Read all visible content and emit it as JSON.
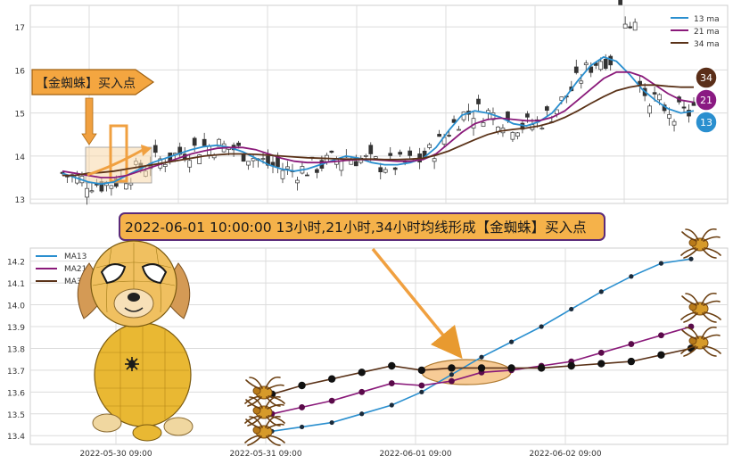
{
  "colors": {
    "ma13": "#2a8fcf",
    "ma21": "#8a1a7a",
    "ma34": "#5a3218",
    "grid": "#dcdcdc",
    "panel_bg": "#eaeaf2",
    "callout_fill": "#f4a640",
    "callout_stroke": "#a06010",
    "banner_fill": "#f5b24a",
    "banner_stroke": "#5a2a7a",
    "badge34": "#5a2e18",
    "badge21": "#8a1a82",
    "badge13": "#2a8fcf"
  },
  "callout_text": "【金蜘蛛】买入点",
  "banner_text": "2022-06-01 10:00:00 13小时,21小时,34小时均线形成【金蜘蛛】买入点",
  "badges": [
    "34",
    "21",
    "13"
  ],
  "icons": [
    "spider-icon",
    "dog-mascot-icon",
    "arrow-icon"
  ],
  "chart_data": [
    {
      "type": "candlestick",
      "title": "",
      "ylim": [
        12.9,
        17.5
      ],
      "yticks": [
        "13",
        "14",
        "15",
        "16",
        "17"
      ],
      "legend": {
        "placement": "top-right",
        "entries": [
          "13 ma",
          "21 ma",
          "34 ma"
        ]
      },
      "grid": true,
      "bars": 130,
      "series": [
        {
          "name": "13 ma",
          "values": [
            13.6,
            13.5,
            13.4,
            13.35,
            13.4,
            13.55,
            13.7,
            13.85,
            13.95,
            14.05,
            14.15,
            14.22,
            14.25,
            14.2,
            14.1,
            13.95,
            13.8,
            13.7,
            13.65,
            13.7,
            13.8,
            13.9,
            14.0,
            13.95,
            13.85,
            13.8,
            13.8,
            13.85,
            13.95,
            14.2,
            14.6,
            14.95,
            15.05,
            15.0,
            14.9,
            14.75,
            14.7,
            14.8,
            15.0,
            15.35,
            15.75,
            16.1,
            16.3,
            16.2,
            15.9,
            15.55,
            15.3,
            15.1,
            15.0,
            15.05
          ]
        },
        {
          "name": "21 ma",
          "values": [
            13.65,
            13.6,
            13.55,
            13.5,
            13.5,
            13.55,
            13.65,
            13.75,
            13.85,
            13.95,
            14.05,
            14.12,
            14.18,
            14.2,
            14.2,
            14.15,
            14.05,
            13.95,
            13.88,
            13.85,
            13.85,
            13.87,
            13.9,
            13.92,
            13.92,
            13.9,
            13.88,
            13.88,
            13.92,
            14.05,
            14.3,
            14.55,
            14.75,
            14.85,
            14.88,
            14.85,
            14.82,
            14.82,
            14.9,
            15.05,
            15.3,
            15.55,
            15.8,
            15.95,
            15.95,
            15.85,
            15.65,
            15.45,
            15.3,
            15.25
          ]
        },
        {
          "name": "34 ma",
          "values": [
            13.55,
            13.55,
            13.6,
            13.62,
            13.65,
            13.7,
            13.75,
            13.8,
            13.85,
            13.9,
            13.95,
            14.0,
            14.03,
            14.05,
            14.05,
            14.04,
            14.02,
            14.0,
            13.98,
            13.96,
            13.95,
            13.94,
            13.93,
            13.93,
            13.93,
            13.92,
            13.92,
            13.93,
            13.95,
            14.02,
            14.12,
            14.25,
            14.38,
            14.5,
            14.58,
            14.62,
            14.65,
            14.7,
            14.78,
            14.9,
            15.05,
            15.22,
            15.38,
            15.52,
            15.6,
            15.65,
            15.65,
            15.62,
            15.6,
            15.6
          ]
        }
      ]
    },
    {
      "type": "line",
      "title": "",
      "ylim": [
        13.36,
        14.26
      ],
      "yticks": [
        "13.4",
        "13.5",
        "13.6",
        "13.7",
        "13.8",
        "13.9",
        "14.0",
        "14.1",
        "14.2"
      ],
      "xticks": [
        "2022-05-30 09:00",
        "2022-05-31 09:00",
        "2022-06-01 09:00",
        "2022-06-02 09:00"
      ],
      "legend": {
        "placement": "top-left",
        "entries": [
          "MA13",
          "MA21",
          "MA34"
        ]
      },
      "grid": true,
      "x": [
        0,
        1,
        2,
        3,
        4,
        5,
        6,
        7,
        8,
        9,
        10,
        11,
        12,
        13,
        14
      ],
      "series": [
        {
          "name": "MA13",
          "values": [
            13.42,
            13.44,
            13.46,
            13.5,
            13.54,
            13.6,
            13.68,
            13.76,
            13.83,
            13.9,
            13.98,
            14.06,
            14.13,
            14.19,
            14.21
          ]
        },
        {
          "name": "MA21",
          "values": [
            13.5,
            13.53,
            13.56,
            13.6,
            13.64,
            13.63,
            13.65,
            13.69,
            13.7,
            13.72,
            13.74,
            13.78,
            13.82,
            13.86,
            13.9
          ]
        },
        {
          "name": "MA34",
          "values": [
            13.59,
            13.63,
            13.66,
            13.69,
            13.72,
            13.7,
            13.71,
            13.71,
            13.71,
            13.71,
            13.72,
            13.73,
            13.74,
            13.77,
            13.8
          ]
        }
      ]
    }
  ]
}
